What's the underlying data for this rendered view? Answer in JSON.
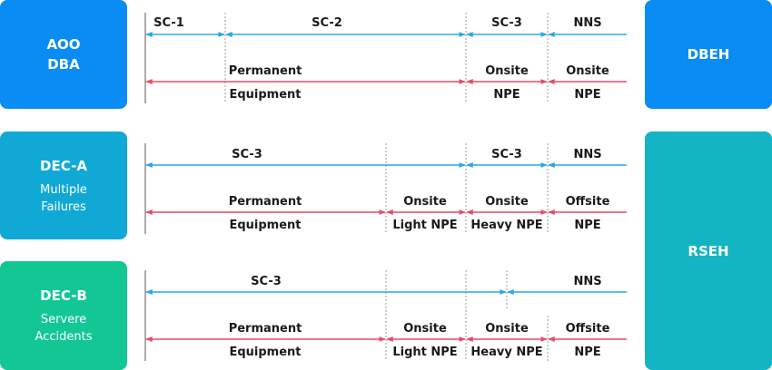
{
  "left_boxes": {
    "aoo": {
      "title_line1": "AOO",
      "title_line2": "DBA"
    },
    "deca": {
      "title": "DEC-A",
      "sub_line1": "Multiple",
      "sub_line2": "Failures"
    },
    "decb": {
      "title": "DEC-B",
      "sub_line1": "Servere",
      "sub_line2": "Accidents"
    }
  },
  "right_boxes": {
    "dbeh": "DBEH",
    "rseh": "RSEH"
  },
  "colors": {
    "blue_arrow": "#2aa7e8",
    "red_arrow": "#e84a6a",
    "box_blue": "#0a8cf5",
    "box_cyan": "#10a9d6",
    "box_green": "#13c795",
    "box_teal": "#13b5c4"
  },
  "rows": {
    "aoo": {
      "blue": [
        "SC-1",
        "SC-2",
        "SC-3",
        "NNS"
      ],
      "red_top": [
        "Permanent",
        "Onsite",
        "Onsite"
      ],
      "red_bottom": [
        "Equipment",
        "NPE",
        "NPE"
      ]
    },
    "deca": {
      "blue": [
        "SC-3",
        "SC-3",
        "NNS"
      ],
      "red_top": [
        "Permanent",
        "Onsite",
        "Onsite",
        "Offsite"
      ],
      "red_bottom": [
        "Equipment",
        "Light NPE",
        "Heavy NPE",
        "NPE"
      ]
    },
    "decb": {
      "blue": [
        "SC-3",
        "NNS"
      ],
      "red_top": [
        "Permanent",
        "Onsite",
        "Onsite",
        "Offsite"
      ],
      "red_bottom": [
        "Equipment",
        "Light NPE",
        "Heavy NPE",
        "NPE"
      ]
    }
  }
}
